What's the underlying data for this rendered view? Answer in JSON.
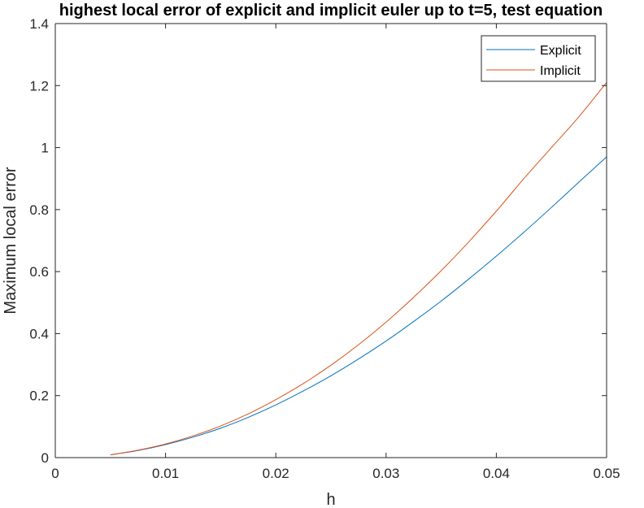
{
  "chart_data": {
    "type": "line",
    "title": "highest local error of explicit and implicit euler up to t=5, test equation",
    "xlabel": "h",
    "ylabel": "Maximum local error",
    "xlim": [
      0,
      0.05
    ],
    "ylim": [
      0,
      1.4
    ],
    "xticks": [
      "0",
      "0.01",
      "0.02",
      "0.03",
      "0.04",
      "0.05"
    ],
    "xtick_values": [
      0,
      0.01,
      0.02,
      0.03,
      0.04,
      0.05
    ],
    "yticks": [
      "0",
      "0.2",
      "0.4",
      "0.6",
      "0.8",
      "1",
      "1.2",
      "1.4"
    ],
    "ytick_values": [
      0,
      0.2,
      0.4,
      0.6,
      0.8,
      1.0,
      1.2,
      1.4
    ],
    "grid": false,
    "legend_position": "top-right",
    "series": [
      {
        "name": "Explicit",
        "color": "#0072BD",
        "x": [
          0.005,
          0.0075,
          0.01,
          0.0125,
          0.015,
          0.0175,
          0.02,
          0.0225,
          0.025,
          0.0275,
          0.03,
          0.0325,
          0.035,
          0.0375,
          0.04,
          0.0425,
          0.045,
          0.0475,
          0.05
        ],
        "y": [
          0.009,
          0.023,
          0.042,
          0.066,
          0.095,
          0.13,
          0.17,
          0.215,
          0.264,
          0.318,
          0.376,
          0.439,
          0.505,
          0.576,
          0.65,
          0.727,
          0.807,
          0.889,
          0.97
        ]
      },
      {
        "name": "Implicit",
        "color": "#D95319",
        "x": [
          0.005,
          0.0075,
          0.01,
          0.0125,
          0.015,
          0.0175,
          0.02,
          0.0225,
          0.025,
          0.0275,
          0.03,
          0.0325,
          0.035,
          0.0375,
          0.04,
          0.0425,
          0.045,
          0.0475,
          0.05
        ],
        "y": [
          0.009,
          0.024,
          0.044,
          0.07,
          0.102,
          0.141,
          0.187,
          0.239,
          0.298,
          0.364,
          0.437,
          0.517,
          0.603,
          0.696,
          0.795,
          0.9,
          1.0,
          1.1,
          1.21
        ]
      }
    ]
  }
}
